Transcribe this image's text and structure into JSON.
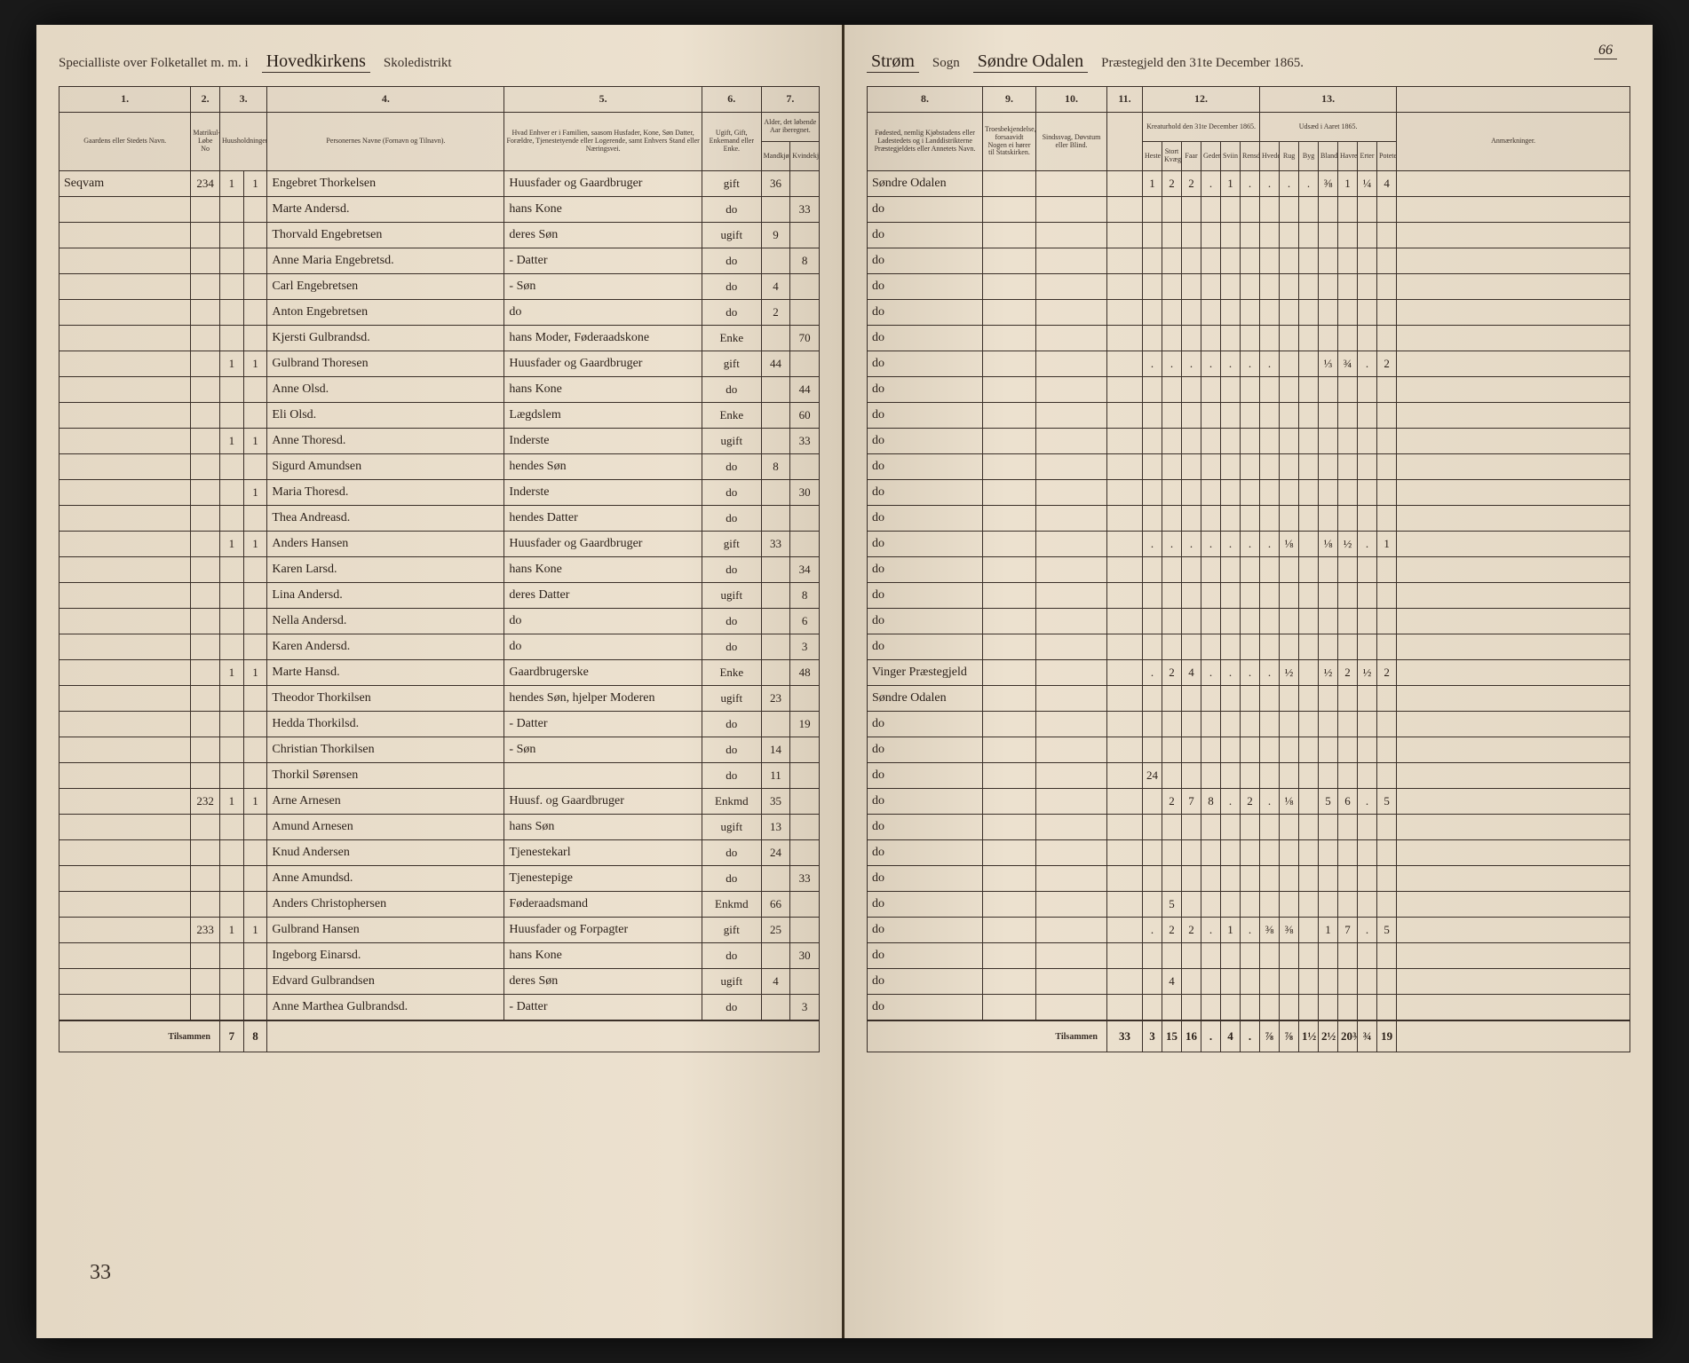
{
  "pageNumber": "66",
  "leftHeader": {
    "printed1": "Specialliste over Folketallet m. m. i",
    "script1": "Hovedkirkens",
    "printed2": "Skoledistrikt"
  },
  "rightHeader": {
    "script1": "Strøm",
    "printed1": "Sogn",
    "script2": "Søndre Odalen",
    "printed2": "Præstegjeld den 31te December 1865."
  },
  "colHeaders": {
    "c1": "1.",
    "c2": "2.",
    "c3": "3.",
    "c4": "4.",
    "c5": "5.",
    "c6": "6.",
    "c7": "7.",
    "c8": "8.",
    "c9": "9.",
    "c10": "10.",
    "c11": "11.",
    "c12": "12.",
    "c13": "13."
  },
  "subHeaders": {
    "navn": "Gaardens eller Stedets Navn.",
    "matr": "Matrikul-Løbe No",
    "hus": "Huusholdninger",
    "person": "Personernes Navne (Fornavn og Tilnavn).",
    "stand": "Hvad Enhver er i Familien, saasom Husfader, Kone, Søn Datter, Forældre, Tjenestetyende eller Logerende, samt Enhvers Stand eller Næringsvei.",
    "giftstand": "Ugift, Gift, Enkemand eller Enke.",
    "alder": "Alder, det løbende Aar iberegnet.",
    "mand": "Mandkjøn",
    "kvinde": "Kvindekjøn",
    "fodested": "Fødested, nemlig Kjøbstadens eller Ladestedets og i Landdistrikterne Præstegjeldets eller Annetets Navn.",
    "tro": "Troesbekjendelse, forsaavidt Nogen ei hører til Statskirken.",
    "sind": "Sindssvag, Døvstum eller Blind.",
    "kreatur": "Kreaturhold den 31te December 1865.",
    "udsad": "Udsæd i Aaret 1865.",
    "anm": "Anmærkninger.",
    "heste": "Heste",
    "storfe": "Stort Kvæg",
    "faar": "Faar",
    "geder": "Geder",
    "svin": "Sviin",
    "rensdyr": "Rensdyr",
    "hvede": "Hvede",
    "rug": "Rug",
    "byg": "Byg",
    "blandkorn": "Blandkorn",
    "havre": "Havre",
    "erter": "Erter",
    "poteter": "Poteter"
  },
  "gaard": "Seqvam",
  "rows": [
    {
      "matr": "234",
      "h1": "1",
      "h2": "1",
      "navn": "Engebret Thorkelsen",
      "stand": "Huusfader og Gaardbruger",
      "gift": "gift",
      "m": "36",
      "k": "",
      "sted": "Søndre Odalen",
      "kreatur": [
        "1",
        "2",
        "2",
        ".",
        "1",
        ".",
        ".",
        ".",
        ".",
        "⅜",
        "1",
        "¼",
        "4"
      ]
    },
    {
      "matr": "",
      "h1": "",
      "h2": "",
      "navn": "Marte Andersd.",
      "stand": "hans Kone",
      "gift": "do",
      "m": "",
      "k": "33",
      "sted": "do",
      "kreatur": []
    },
    {
      "matr": "",
      "h1": "",
      "h2": "",
      "navn": "Thorvald Engebretsen",
      "stand": "deres Søn",
      "gift": "ugift",
      "m": "9",
      "k": "",
      "sted": "do",
      "kreatur": []
    },
    {
      "matr": "",
      "h1": "",
      "h2": "",
      "navn": "Anne Maria Engebretsd.",
      "stand": "- Datter",
      "gift": "do",
      "m": "",
      "k": "8",
      "sted": "do",
      "kreatur": []
    },
    {
      "matr": "",
      "h1": "",
      "h2": "",
      "navn": "Carl Engebretsen",
      "stand": "- Søn",
      "gift": "do",
      "m": "4",
      "k": "",
      "sted": "do",
      "kreatur": []
    },
    {
      "matr": "",
      "h1": "",
      "h2": "",
      "navn": "Anton Engebretsen",
      "stand": "do",
      "gift": "do",
      "m": "2",
      "k": "",
      "sted": "do",
      "kreatur": []
    },
    {
      "matr": "",
      "h1": "",
      "h2": "",
      "navn": "Kjersti Gulbrandsd.",
      "stand": "hans Moder, Føderaadskone",
      "gift": "Enke",
      "m": "",
      "k": "70",
      "sted": "do",
      "kreatur": []
    },
    {
      "matr": "",
      "h1": "1",
      "h2": "1",
      "navn": "Gulbrand Thoresen",
      "stand": "Huusfader og Gaardbruger",
      "gift": "gift",
      "m": "44",
      "k": "",
      "sted": "do",
      "kreatur": [
        ".",
        ".",
        ".",
        ".",
        ".",
        ".",
        ".",
        "",
        "",
        "⅓",
        "¾",
        ".",
        "2"
      ]
    },
    {
      "matr": "",
      "h1": "",
      "h2": "",
      "navn": "Anne Olsd.",
      "stand": "hans Kone",
      "gift": "do",
      "m": "",
      "k": "44",
      "sted": "do",
      "kreatur": []
    },
    {
      "matr": "",
      "h1": "",
      "h2": "",
      "navn": "Eli Olsd.",
      "stand": "Lægdslem",
      "gift": "Enke",
      "m": "",
      "k": "60",
      "sted": "do",
      "kreatur": []
    },
    {
      "matr": "",
      "h1": "1",
      "h2": "1",
      "navn": "Anne Thoresd.",
      "stand": "Inderste",
      "gift": "ugift",
      "m": "",
      "k": "33",
      "sted": "do",
      "kreatur": []
    },
    {
      "matr": "",
      "h1": "",
      "h2": "",
      "navn": "Sigurd Amundsen",
      "stand": "hendes Søn",
      "gift": "do",
      "m": "8",
      "k": "",
      "sted": "do",
      "kreatur": []
    },
    {
      "matr": "",
      "h1": "",
      "h2": "1",
      "navn": "Maria Thoresd.",
      "stand": "Inderste",
      "gift": "do",
      "m": "",
      "k": "30",
      "sted": "do",
      "kreatur": []
    },
    {
      "matr": "",
      "h1": "",
      "h2": "",
      "navn": "Thea Andreasd.",
      "stand": "hendes Datter",
      "gift": "do",
      "m": "",
      "k": "",
      "sted": "do",
      "kreatur": []
    },
    {
      "matr": "",
      "h1": "1",
      "h2": "1",
      "navn": "Anders Hansen",
      "stand": "Huusfader og Gaardbruger",
      "gift": "gift",
      "m": "33",
      "k": "",
      "sted": "do",
      "kreatur": [
        ".",
        ".",
        ".",
        ".",
        ".",
        ".",
        ".",
        "⅛",
        "",
        "⅛",
        "½",
        ".",
        "1"
      ]
    },
    {
      "matr": "",
      "h1": "",
      "h2": "",
      "navn": "Karen Larsd.",
      "stand": "hans Kone",
      "gift": "do",
      "m": "",
      "k": "34",
      "sted": "do",
      "kreatur": []
    },
    {
      "matr": "",
      "h1": "",
      "h2": "",
      "navn": "Lina Andersd.",
      "stand": "deres Datter",
      "gift": "ugift",
      "m": "",
      "k": "8",
      "sted": "do",
      "kreatur": []
    },
    {
      "matr": "",
      "h1": "",
      "h2": "",
      "navn": "Nella Andersd.",
      "stand": "do",
      "gift": "do",
      "m": "",
      "k": "6",
      "sted": "do",
      "kreatur": []
    },
    {
      "matr": "",
      "h1": "",
      "h2": "",
      "navn": "Karen Andersd.",
      "stand": "do",
      "gift": "do",
      "m": "",
      "k": "3",
      "sted": "do",
      "kreatur": []
    },
    {
      "matr": "",
      "h1": "1",
      "h2": "1",
      "navn": "Marte Hansd.",
      "stand": "Gaardbrugerske",
      "gift": "Enke",
      "m": "",
      "k": "48",
      "sted": "Vinger Præstegjeld",
      "kreatur": [
        ".",
        "2",
        "4",
        ".",
        ".",
        ".",
        ".",
        "½",
        "",
        "½",
        "2",
        "½",
        "2"
      ]
    },
    {
      "matr": "",
      "h1": "",
      "h2": "",
      "navn": "Theodor Thorkilsen",
      "stand": "hendes Søn, hjelper Moderen",
      "gift": "ugift",
      "m": "23",
      "k": "",
      "sted": "Søndre Odalen",
      "kreatur": []
    },
    {
      "matr": "",
      "h1": "",
      "h2": "",
      "navn": "Hedda Thorkilsd.",
      "stand": "- Datter",
      "gift": "do",
      "m": "",
      "k": "19",
      "sted": "do",
      "kreatur": []
    },
    {
      "matr": "",
      "h1": "",
      "h2": "",
      "navn": "Christian Thorkilsen",
      "stand": "- Søn",
      "gift": "do",
      "m": "14",
      "k": "",
      "sted": "do",
      "kreatur": []
    },
    {
      "matr": "",
      "h1": "",
      "h2": "",
      "navn": "Thorkil Sørensen",
      "stand": "",
      "gift": "do",
      "m": "11",
      "k": "",
      "sted": "do",
      "kreatur": [
        "24",
        "",
        "",
        "",
        "",
        "",
        "",
        "",
        "",
        "",
        "",
        "",
        ""
      ]
    },
    {
      "matr": "232",
      "h1": "1",
      "h2": "1",
      "navn": "Arne Arnesen",
      "stand": "Huusf. og Gaardbruger",
      "gift": "Enkmd",
      "m": "35",
      "k": "",
      "sted": "do",
      "kreatur": [
        "",
        "2",
        "7",
        "8",
        ".",
        "2",
        ".",
        "⅛",
        "",
        "5",
        "6",
        ".",
        "5"
      ]
    },
    {
      "matr": "",
      "h1": "",
      "h2": "",
      "navn": "Amund Arnesen",
      "stand": "hans Søn",
      "gift": "ugift",
      "m": "13",
      "k": "",
      "sted": "do",
      "kreatur": []
    },
    {
      "matr": "",
      "h1": "",
      "h2": "",
      "navn": "Knud Andersen",
      "stand": "Tjenestekarl",
      "gift": "do",
      "m": "24",
      "k": "",
      "sted": "do",
      "kreatur": []
    },
    {
      "matr": "",
      "h1": "",
      "h2": "",
      "navn": "Anne Amundsd.",
      "stand": "Tjenestepige",
      "gift": "do",
      "m": "",
      "k": "33",
      "sted": "do",
      "kreatur": []
    },
    {
      "matr": "",
      "h1": "",
      "h2": "",
      "navn": "Anders Christophersen",
      "stand": "Føderaadsmand",
      "gift": "Enkmd",
      "m": "66",
      "k": "",
      "sted": "do",
      "kreatur": [
        "",
        "5",
        "",
        "",
        "",
        "",
        "",
        "",
        "",
        "",
        "",
        "",
        ""
      ]
    },
    {
      "matr": "233",
      "h1": "1",
      "h2": "1",
      "navn": "Gulbrand Hansen",
      "stand": "Huusfader og Forpagter",
      "gift": "gift",
      "m": "25",
      "k": "",
      "sted": "do",
      "kreatur": [
        ".",
        "2",
        "2",
        ".",
        "1",
        ".",
        "⅜",
        "⅜",
        "",
        "1",
        "7",
        ".",
        "5"
      ]
    },
    {
      "matr": "",
      "h1": "",
      "h2": "",
      "navn": "Ingeborg Einarsd.",
      "stand": "hans Kone",
      "gift": "do",
      "m": "",
      "k": "30",
      "sted": "do",
      "kreatur": []
    },
    {
      "matr": "",
      "h1": "",
      "h2": "",
      "navn": "Edvard Gulbrandsen",
      "stand": "deres Søn",
      "gift": "ugift",
      "m": "4",
      "k": "",
      "sted": "do",
      "kreatur": [
        "",
        "4",
        "",
        "",
        "",
        "",
        "",
        "",
        "",
        "",
        "",
        "",
        ""
      ]
    },
    {
      "matr": "",
      "h1": "",
      "h2": "",
      "navn": "Anne Marthea Gulbrandsd.",
      "stand": "- Datter",
      "gift": "do",
      "m": "",
      "k": "3",
      "sted": "do",
      "kreatur": []
    }
  ],
  "totals": {
    "label": "Tilsammen",
    "h1": "7",
    "h2": "8",
    "right": [
      "33",
      "3",
      "15",
      "16",
      ".",
      "4",
      ".",
      "⅞",
      "⅞",
      "1½",
      "2½",
      "20¾",
      "¾",
      "19"
    ]
  },
  "footerMark": "33"
}
